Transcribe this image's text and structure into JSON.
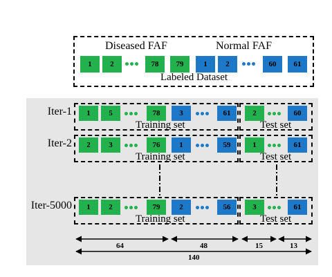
{
  "labeled": {
    "diseased_label": "Diseased FAF",
    "normal_label": "Normal FAF",
    "caption": "Labeled Dataset",
    "green_boxes": [
      "1",
      "2",
      "78",
      "79"
    ],
    "blue_boxes": [
      "1",
      "2",
      "60",
      "61"
    ]
  },
  "iterations": [
    {
      "label": "Iter-1",
      "train_green": [
        "1",
        "5",
        "78"
      ],
      "train_blue": [
        "3",
        "61"
      ],
      "test_green": [
        "2"
      ],
      "test_blue": [
        "60"
      ],
      "train_caption": "Training set",
      "test_caption": "Test set"
    },
    {
      "label": "Iter-2",
      "train_green": [
        "2",
        "3",
        "76"
      ],
      "train_blue": [
        "1",
        "59"
      ],
      "test_green": [
        "1"
      ],
      "test_blue": [
        "61"
      ],
      "train_caption": "Training set",
      "test_caption": "Test set"
    },
    {
      "label": "Iter-5000",
      "train_green": [
        "1",
        "2",
        "79"
      ],
      "train_blue": [
        "2",
        "56"
      ],
      "test_green": [
        "3"
      ],
      "test_blue": [
        "61"
      ],
      "train_caption": "Training set",
      "test_caption": "Test set"
    }
  ],
  "counts": {
    "a": "64",
    "b": "48",
    "c": "15",
    "d": "13",
    "total": "140"
  },
  "colors": {
    "green": "#22b14c",
    "blue": "#1e78c8",
    "panel": "#e6e6e6"
  }
}
